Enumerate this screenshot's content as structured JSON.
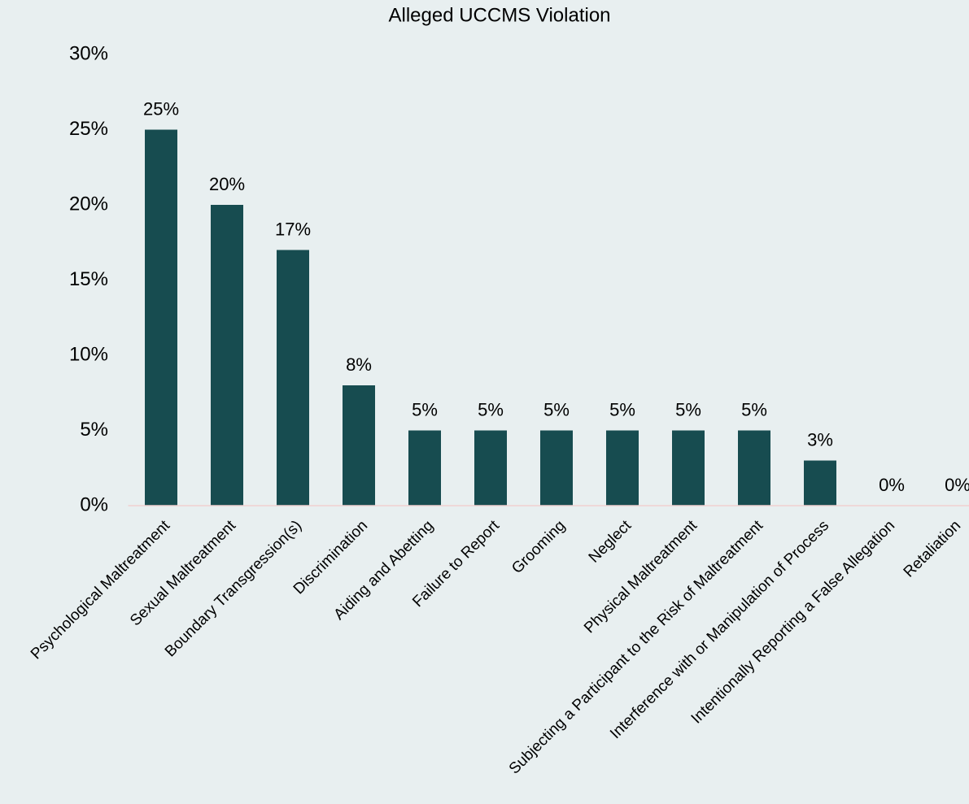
{
  "chart_data": {
    "type": "bar",
    "title": "Alleged UCCMS Violation",
    "categories": [
      "Psychological Maltreatment",
      "Sexual Maltreatment",
      "Boundary Transgression(s)",
      "Discrimination",
      "Aiding and Abetting",
      "Failure to Report",
      "Grooming",
      "Neglect",
      "Physical Maltreatment",
      "Subjecting a Participant to the Risk of Maltreatment",
      "Interference with or Manipulation of Process",
      "Intentionally Reporting a False Allegation",
      "Retaliation"
    ],
    "values": [
      25,
      20,
      17,
      8,
      5,
      5,
      5,
      5,
      5,
      5,
      3,
      0,
      0
    ],
    "value_labels": [
      "25%",
      "20%",
      "17%",
      "8%",
      "5%",
      "5%",
      "5%",
      "5%",
      "5%",
      "5%",
      "3%",
      "0%",
      "0%"
    ],
    "color": "#174c50",
    "ylim": [
      0,
      30
    ],
    "yticks": [
      {
        "value": 0,
        "label": "0%"
      },
      {
        "value": 5,
        "label": "5%"
      },
      {
        "value": 10,
        "label": "10%"
      },
      {
        "value": 15,
        "label": "15%"
      },
      {
        "value": 20,
        "label": "20%"
      },
      {
        "value": 25,
        "label": "25%"
      },
      {
        "value": 30,
        "label": "30%"
      }
    ],
    "grid": false
  }
}
